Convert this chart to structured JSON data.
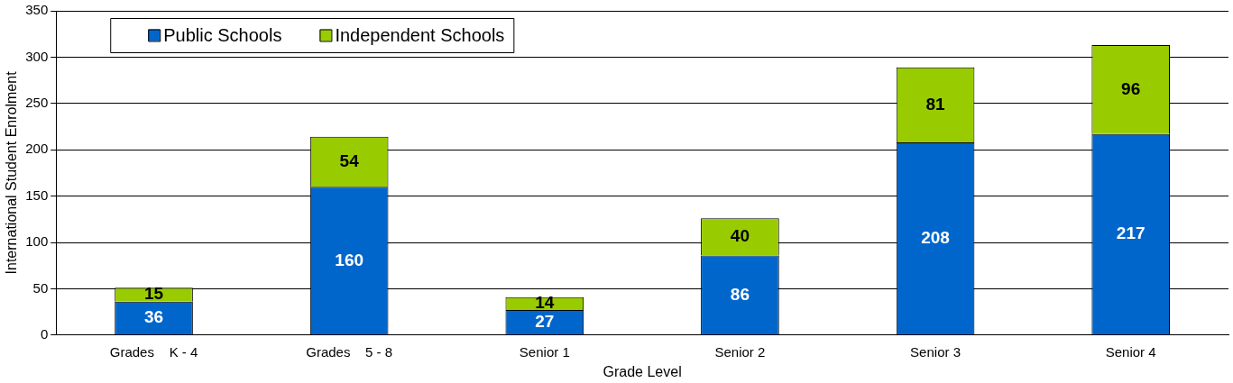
{
  "chart_data": {
    "type": "bar",
    "stacked": true,
    "xlabel": "Grade Level",
    "ylabel": "International Student Enrolment",
    "categories": [
      "Grades    K - 4",
      "Grades    5 - 8",
      "Senior 1",
      "Senior 2",
      "Senior 3",
      "Senior 4"
    ],
    "series": [
      {
        "name": "Public Schools",
        "color": "#0066cc",
        "values": [
          36,
          160,
          27,
          86,
          208,
          217
        ]
      },
      {
        "name": "Independent Schools",
        "color": "#99cc00",
        "values": [
          15,
          54,
          14,
          40,
          81,
          96
        ]
      }
    ],
    "ylim": [
      0,
      350
    ],
    "yticks": [
      0,
      50,
      100,
      150,
      200,
      250,
      300,
      350
    ],
    "grid": "y",
    "legend": "top left",
    "data_labels": true
  }
}
